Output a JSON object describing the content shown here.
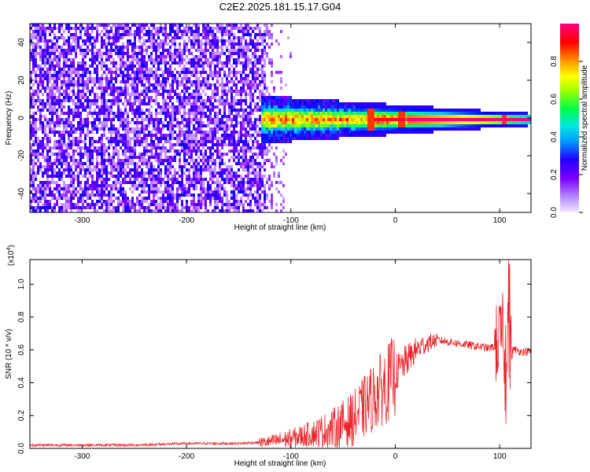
{
  "title": "C2E2.2025.181.15.17.G04",
  "chart_data": [
    {
      "type": "heatmap",
      "xlabel": "Height of straight line (km)",
      "ylabel": "Frequency (Hz)",
      "xlim": [
        -350,
        130
      ],
      "ylim": [
        -50,
        50
      ],
      "xticks": [
        -300,
        -200,
        -100,
        0,
        100
      ],
      "yticks": [
        -40,
        -20,
        0,
        20,
        40
      ],
      "colorbar": {
        "label": "Normalized spectral amplitude",
        "range": [
          0,
          1
        ],
        "ticks": [
          "0.0",
          "0.2",
          "0.4",
          "0.6",
          "0.8"
        ],
        "colormap": [
          "#f4e8ff",
          "#7a00ff",
          "#0000ff",
          "#00c8ff",
          "#00ff66",
          "#a8ff00",
          "#ffff00",
          "#ff9900",
          "#ff0000",
          "#ff007f"
        ]
      },
      "signal": {
        "noise_region_x": [
          -350,
          -125
        ],
        "scattered_region_x": [
          -125,
          -100
        ],
        "line_start_x": -130,
        "center_frequency": 0,
        "bandwidth_at_start": 8,
        "bandwidth_at_end": 2,
        "blips_x": [
          -25,
          5,
          103
        ]
      }
    },
    {
      "type": "line",
      "xlabel": "Height of straight line (km)",
      "ylabel": "SNR (10 * v/v)",
      "exponent_label": "(x10",
      "exponent": "4",
      "exponent_close": ")",
      "xlim": [
        -350,
        130
      ],
      "ylim": [
        0,
        1.15
      ],
      "xticks": [
        -300,
        -200,
        -100,
        0,
        100
      ],
      "yticks": [
        "0.0",
        "0.2",
        "0.4",
        "0.6",
        "0.8",
        "1.0"
      ],
      "series": [
        {
          "color": "#e8262b",
          "x": [
            -350,
            -300,
            -250,
            -200,
            -150,
            -120,
            -100,
            -80,
            -60,
            -40,
            -30,
            -20,
            -10,
            0,
            10,
            20,
            30,
            40,
            50,
            60,
            70,
            80,
            90,
            95,
            100,
            103,
            106,
            108,
            110,
            115,
            120,
            130
          ],
          "y": [
            0.02,
            0.02,
            0.02,
            0.03,
            0.03,
            0.04,
            0.06,
            0.09,
            0.12,
            0.18,
            0.25,
            0.32,
            0.38,
            0.45,
            0.53,
            0.6,
            0.64,
            0.66,
            0.65,
            0.64,
            0.63,
            0.62,
            0.61,
            0.62,
            0.66,
            0.7,
            0.5,
            0.9,
            0.6,
            0.6,
            0.59,
            0.59
          ]
        }
      ]
    }
  ]
}
